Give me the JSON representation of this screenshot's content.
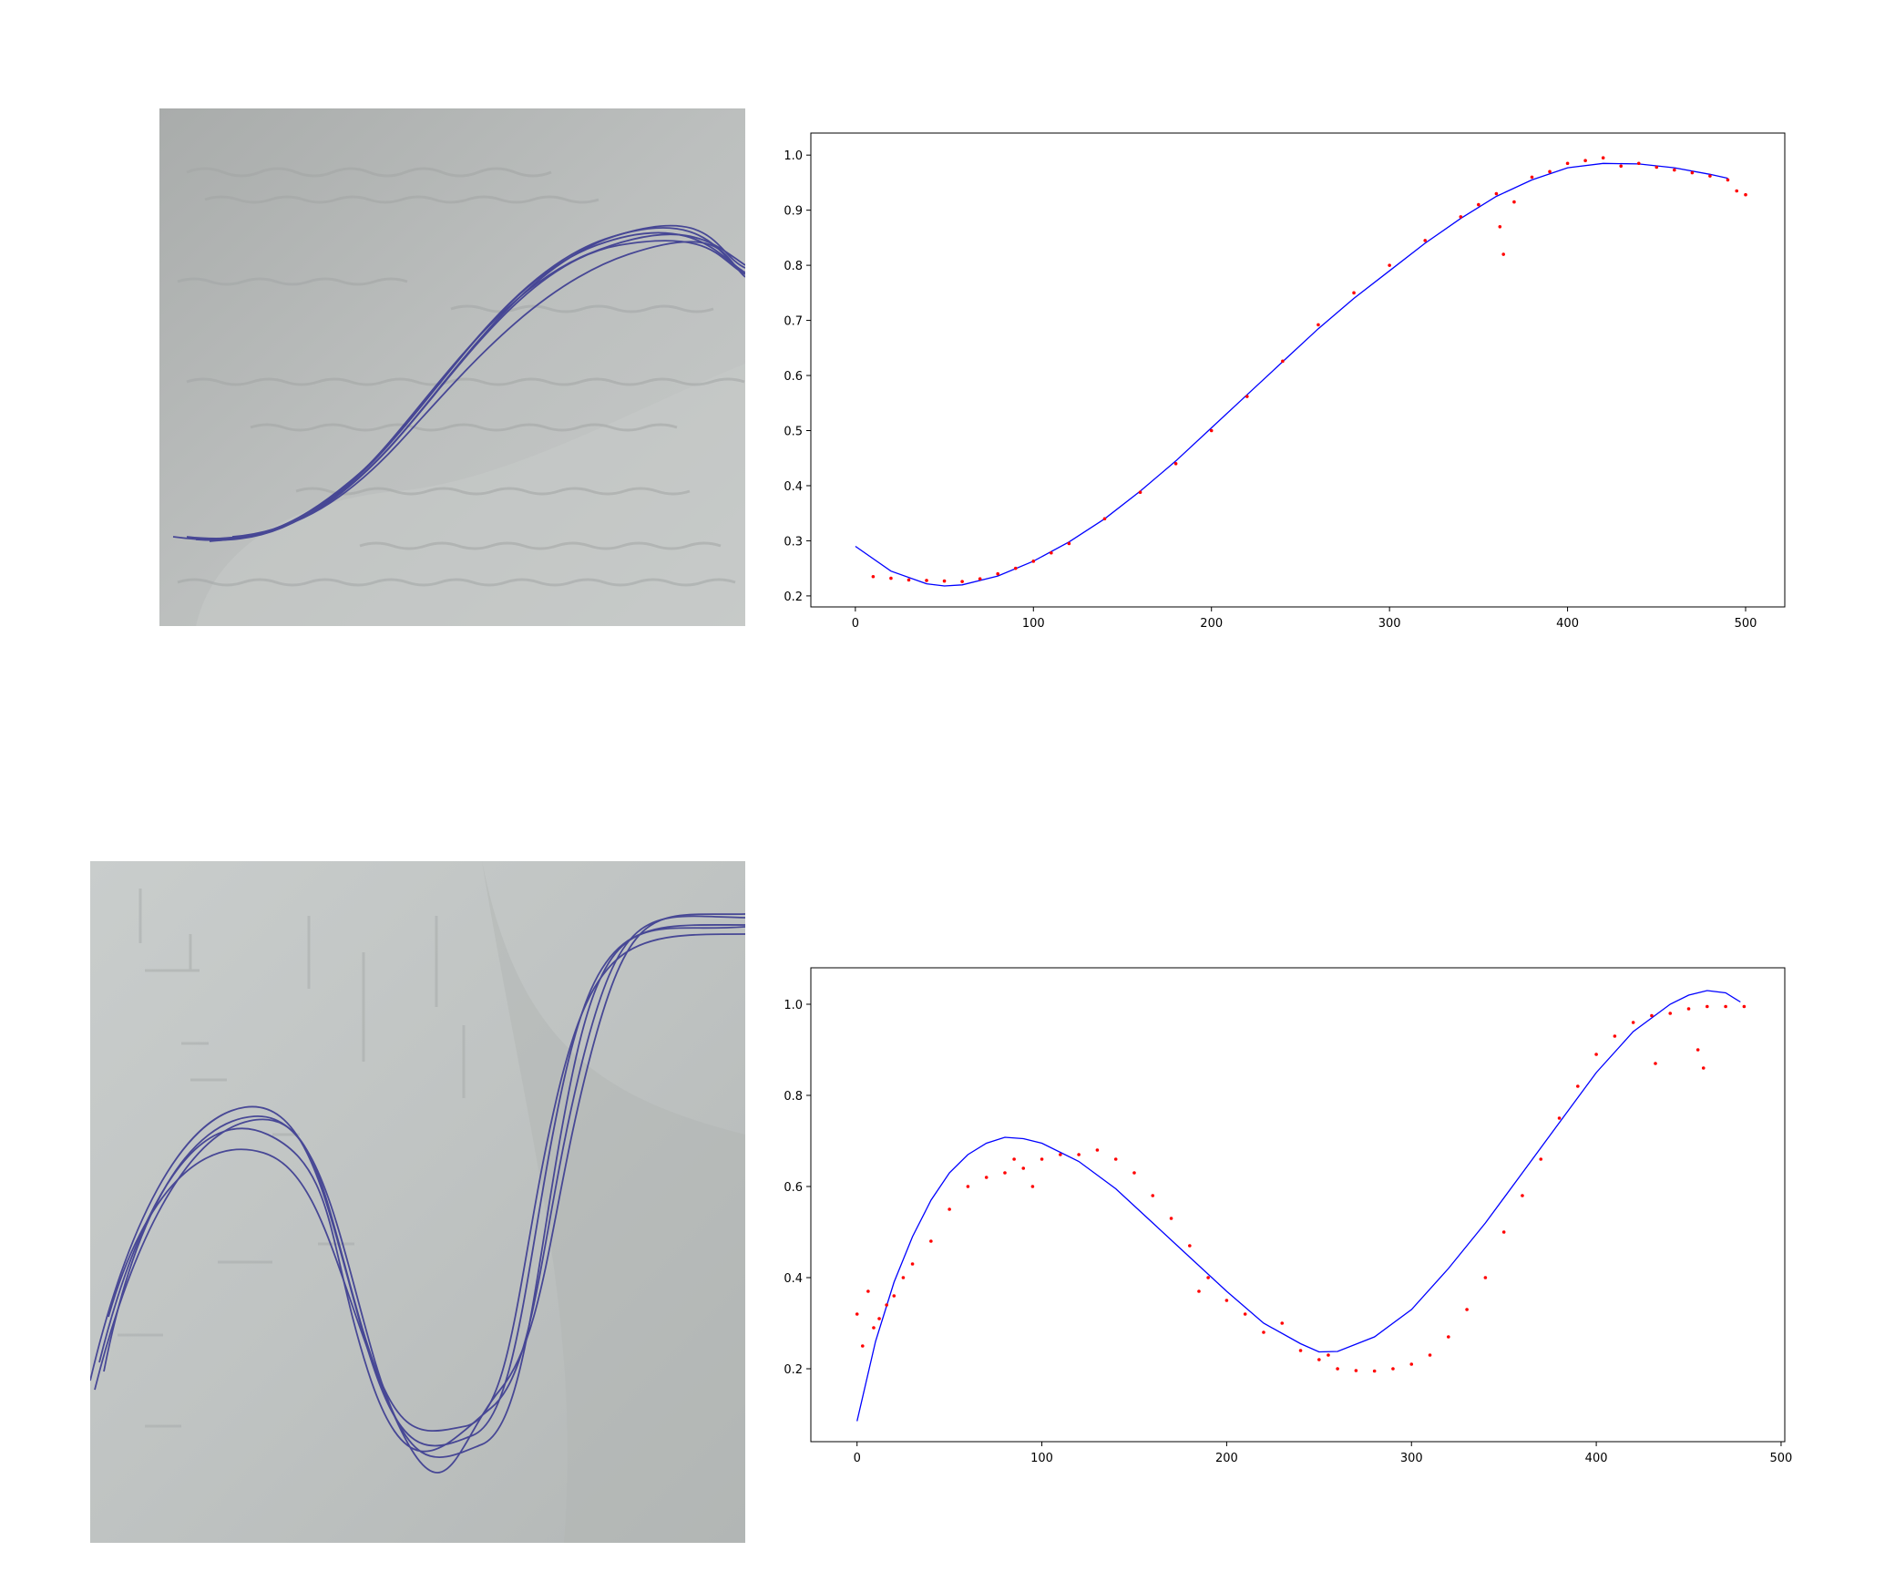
{
  "colors": {
    "fit_line": "#0000ff",
    "data_points": "#ff0000",
    "ink": "#3a3a8c",
    "paper_top": "#b9bcbb",
    "paper_bottom": "#c3c7c6"
  },
  "photos": [
    {
      "name": "sketch-photo-top"
    },
    {
      "name": "sketch-photo-bottom"
    }
  ],
  "chart_data": [
    {
      "type": "scatter",
      "title": "",
      "xlabel": "",
      "ylabel": "",
      "xlim": [
        -25,
        522
      ],
      "ylim": [
        0.18,
        1.04
      ],
      "xticks": [
        "0",
        "100",
        "200",
        "300",
        "400",
        "500"
      ],
      "yticks": [
        "0.2",
        "0.3",
        "0.4",
        "0.5",
        "0.6",
        "0.7",
        "0.8",
        "0.9",
        "1.0"
      ],
      "grid": false,
      "series": [
        {
          "kind": "line",
          "x": [
            0,
            20,
            40,
            50,
            60,
            80,
            100,
            120,
            140,
            160,
            180,
            200,
            220,
            240,
            260,
            280,
            300,
            320,
            340,
            360,
            380,
            400,
            420,
            440,
            460,
            480,
            490
          ],
          "y": [
            0.29,
            0.245,
            0.222,
            0.218,
            0.22,
            0.236,
            0.263,
            0.298,
            0.34,
            0.39,
            0.445,
            0.505,
            0.565,
            0.625,
            0.685,
            0.74,
            0.79,
            0.84,
            0.885,
            0.925,
            0.955,
            0.977,
            0.985,
            0.984,
            0.977,
            0.965,
            0.958
          ]
        },
        {
          "kind": "points",
          "x": [
            10,
            20,
            30,
            40,
            50,
            60,
            70,
            80,
            90,
            100,
            110,
            120,
            140,
            160,
            180,
            200,
            220,
            240,
            260,
            280,
            300,
            320,
            340,
            350,
            360,
            362,
            364,
            370,
            380,
            390,
            400,
            410,
            420,
            430,
            440,
            450,
            460,
            470,
            480,
            490,
            495,
            500
          ],
          "y": [
            0.235,
            0.232,
            0.229,
            0.228,
            0.227,
            0.226,
            0.231,
            0.24,
            0.25,
            0.263,
            0.278,
            0.295,
            0.34,
            0.388,
            0.44,
            0.5,
            0.562,
            0.626,
            0.692,
            0.75,
            0.8,
            0.845,
            0.888,
            0.91,
            0.93,
            0.87,
            0.82,
            0.915,
            0.96,
            0.97,
            0.985,
            0.99,
            0.995,
            0.98,
            0.985,
            0.978,
            0.973,
            0.968,
            0.962,
            0.955,
            0.935,
            0.928
          ]
        }
      ]
    },
    {
      "type": "scatter",
      "title": "",
      "xlabel": "",
      "ylabel": "",
      "xlim": [
        -25,
        502
      ],
      "ylim": [
        0.04,
        1.08
      ],
      "xticks": [
        "0",
        "100",
        "200",
        "300",
        "400",
        "500"
      ],
      "yticks": [
        "0.2",
        "0.4",
        "0.6",
        "0.8",
        "1.0"
      ],
      "grid": false,
      "series": [
        {
          "kind": "line",
          "x": [
            0,
            10,
            20,
            30,
            40,
            50,
            60,
            70,
            80,
            90,
            100,
            120,
            140,
            160,
            180,
            200,
            220,
            240,
            250,
            260,
            280,
            300,
            320,
            340,
            360,
            380,
            400,
            420,
            440,
            450,
            460,
            470,
            478
          ],
          "y": [
            0.085,
            0.26,
            0.39,
            0.49,
            0.57,
            0.63,
            0.67,
            0.695,
            0.708,
            0.705,
            0.695,
            0.655,
            0.595,
            0.52,
            0.445,
            0.37,
            0.3,
            0.255,
            0.237,
            0.238,
            0.27,
            0.33,
            0.42,
            0.52,
            0.63,
            0.74,
            0.85,
            0.94,
            1.0,
            1.02,
            1.03,
            1.025,
            1.005
          ]
        },
        {
          "kind": "points",
          "x": [
            0,
            3,
            6,
            9,
            12,
            16,
            20,
            25,
            30,
            40,
            50,
            60,
            70,
            80,
            85,
            90,
            95,
            100,
            110,
            120,
            130,
            140,
            150,
            160,
            170,
            180,
            185,
            190,
            200,
            210,
            220,
            230,
            240,
            250,
            255,
            260,
            270,
            280,
            290,
            300,
            310,
            320,
            330,
            340,
            350,
            360,
            370,
            380,
            390,
            400,
            410,
            420,
            430,
            432,
            440,
            450,
            455,
            458,
            460,
            470,
            480
          ],
          "y": [
            0.32,
            0.25,
            0.37,
            0.29,
            0.31,
            0.34,
            0.36,
            0.4,
            0.43,
            0.48,
            0.55,
            0.6,
            0.62,
            0.63,
            0.66,
            0.64,
            0.6,
            0.66,
            0.67,
            0.67,
            0.68,
            0.66,
            0.63,
            0.58,
            0.53,
            0.47,
            0.37,
            0.4,
            0.35,
            0.32,
            0.28,
            0.3,
            0.24,
            0.22,
            0.23,
            0.2,
            0.196,
            0.195,
            0.2,
            0.21,
            0.23,
            0.27,
            0.33,
            0.4,
            0.5,
            0.58,
            0.66,
            0.75,
            0.82,
            0.89,
            0.93,
            0.96,
            0.975,
            0.87,
            0.98,
            0.99,
            0.9,
            0.86,
            0.995,
            0.995,
            0.995
          ]
        }
      ]
    }
  ]
}
